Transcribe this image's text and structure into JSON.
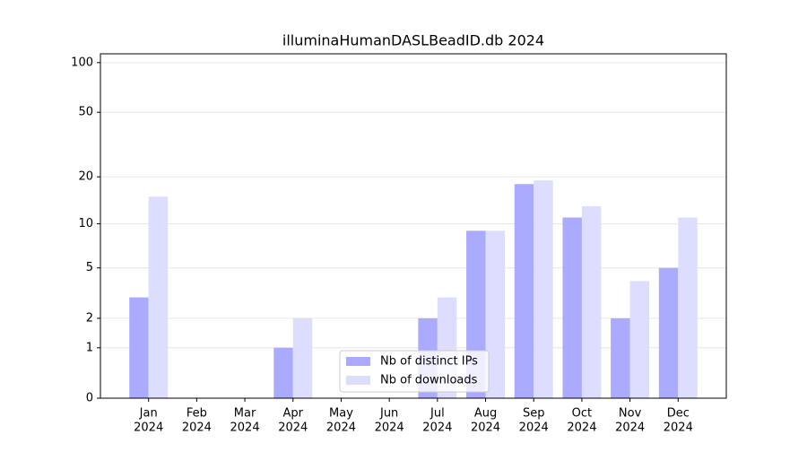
{
  "chart_data": {
    "type": "bar",
    "title": "illuminaHumanDASLBeadID.db 2024",
    "categories": [
      [
        "Jan",
        "2024"
      ],
      [
        "Feb",
        "2024"
      ],
      [
        "Mar",
        "2024"
      ],
      [
        "Apr",
        "2024"
      ],
      [
        "May",
        "2024"
      ],
      [
        "Jun",
        "2024"
      ],
      [
        "Jul",
        "2024"
      ],
      [
        "Aug",
        "2024"
      ],
      [
        "Sep",
        "2024"
      ],
      [
        "Oct",
        "2024"
      ],
      [
        "Nov",
        "2024"
      ],
      [
        "Dec",
        "2024"
      ]
    ],
    "series": [
      {
        "name": "Nb of distinct IPs",
        "color": "#aaaaff",
        "values": [
          3,
          0,
          0,
          1,
          0,
          0,
          2,
          9,
          18,
          11,
          2,
          5
        ]
      },
      {
        "name": "Nb of downloads",
        "color": "#ddddff",
        "values": [
          15,
          0,
          0,
          2,
          0,
          0,
          3,
          9,
          19,
          13,
          4,
          11
        ]
      }
    ],
    "yscale": "log1p",
    "ylim": [
      0,
      113
    ],
    "yticks": [
      0,
      1,
      2,
      5,
      10,
      20,
      50,
      100
    ],
    "grid": true,
    "legend": "lower center"
  }
}
